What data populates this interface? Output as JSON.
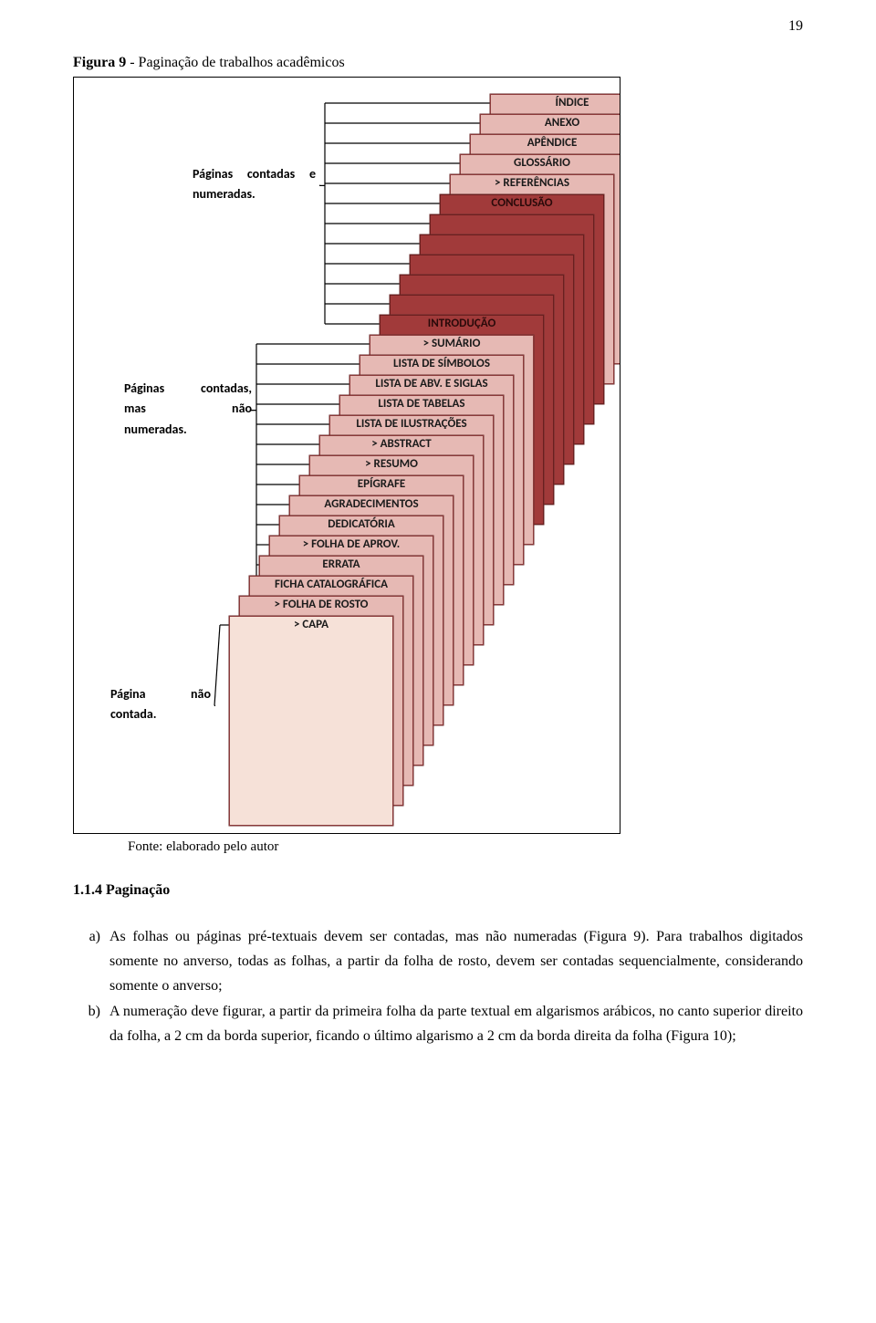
{
  "pageNumber": "19",
  "figCaptionBold": "Figura 9",
  "figCaptionRest": " - Paginação de trabalhos acadêmicos",
  "fonte": "Fonte: elaborado pelo autor",
  "sectionTitle": "1.1.4 Paginação",
  "listA_marker": "a)",
  "listA_text": "As folhas ou páginas pré-textuais devem ser contadas, mas não numeradas (Figura 9). Para trabalhos digitados somente no anverso, todas as folhas, a partir da folha de rosto, devem ser contadas sequencialmente, considerando somente o anverso;",
  "listB_marker": "b)",
  "listB_text": "A numeração deve figurar, a partir da primeira folha da parte textual em algarismos arábicos, no canto superior direito da folha, a 2 cm da borda superior, ficando o último algarismo a 2 cm da borda direita da folha (Figura 10);",
  "sideLabel1": "Páginas contadas e numeradas.",
  "sideLabel2_l1": "Páginas contadas,",
  "sideLabel2_l2": "mas não",
  "sideLabel2_l3": "numeradas.",
  "sideLabel3": "Página não contada.",
  "diagram": {
    "stepX": 11,
    "stepY": 22,
    "sheetW": 180,
    "sheetH": 230,
    "baseLeft": 170,
    "baseTop": 590,
    "colors": {
      "light": "#f6e1d8",
      "pink": "#e6b9b4",
      "darkRed": "#a13a3a",
      "border": "#8b3a3a"
    },
    "sheets": [
      {
        "label": "> CAPA",
        "color": "light",
        "group": 3
      },
      {
        "label": "> FOLHA DE ROSTO",
        "color": "pink",
        "group": 2
      },
      {
        "label": "FICHA CATALOGRÁFICA",
        "color": "pink",
        "group": 2
      },
      {
        "label": "ERRATA",
        "color": "pink",
        "group": 2
      },
      {
        "label": "> FOLHA DE APROV.",
        "color": "pink",
        "group": 2
      },
      {
        "label": "DEDICATÓRIA",
        "color": "pink",
        "group": 2
      },
      {
        "label": "AGRADECIMENTOS",
        "color": "pink",
        "group": 2
      },
      {
        "label": "EPÍGRAFE",
        "color": "pink",
        "group": 2
      },
      {
        "label": "> RESUMO",
        "color": "pink",
        "group": 2
      },
      {
        "label": "> ABSTRACT",
        "color": "pink",
        "group": 2
      },
      {
        "label": "LISTA DE ILUSTRAÇÕES",
        "color": "pink",
        "group": 2
      },
      {
        "label": "LISTA DE TABELAS",
        "color": "pink",
        "group": 2
      },
      {
        "label": "LISTA DE ABV. E SIGLAS",
        "color": "pink",
        "group": 2
      },
      {
        "label": "LISTA DE SÍMBOLOS",
        "color": "pink",
        "group": 2
      },
      {
        "label": "> SUMÁRIO",
        "color": "pink",
        "group": 2
      },
      {
        "label": "INTRODUÇÃO",
        "color": "darkRed",
        "group": 1
      },
      {
        "label": "",
        "color": "darkRed",
        "group": 1
      },
      {
        "label": "",
        "color": "darkRed",
        "group": 1
      },
      {
        "label": "",
        "color": "darkRed",
        "group": 1
      },
      {
        "label": "",
        "color": "darkRed",
        "group": 1
      },
      {
        "label": "",
        "color": "darkRed",
        "group": 1
      },
      {
        "label": "CONCLUSÃO",
        "color": "darkRed",
        "group": 1
      },
      {
        "label": "> REFERÊNCIAS",
        "color": "pink",
        "group": 1
      },
      {
        "label": "GLOSSÁRIO",
        "color": "pink",
        "group": 1
      },
      {
        "label": "APÊNDICE",
        "color": "pink",
        "group": 1
      },
      {
        "label": "ANEXO",
        "color": "pink",
        "group": 1
      },
      {
        "label": "ÍNDICE",
        "color": "pink",
        "group": 1
      }
    ],
    "groups": {
      "1": {
        "labelKey": "sideLabel1",
        "labelTop": 95,
        "labelLeft": 130,
        "labelWidth": 135,
        "bracketX": 275
      },
      "2": {
        "labelKey": "sideLabel2",
        "labelTop": 330,
        "labelLeft": 55,
        "labelWidth": 140,
        "bracketX": 200
      },
      "3": {
        "labelKey": "sideLabel3",
        "labelTop": 665,
        "labelLeft": 40,
        "labelWidth": 110,
        "bracketX": 160
      }
    }
  }
}
